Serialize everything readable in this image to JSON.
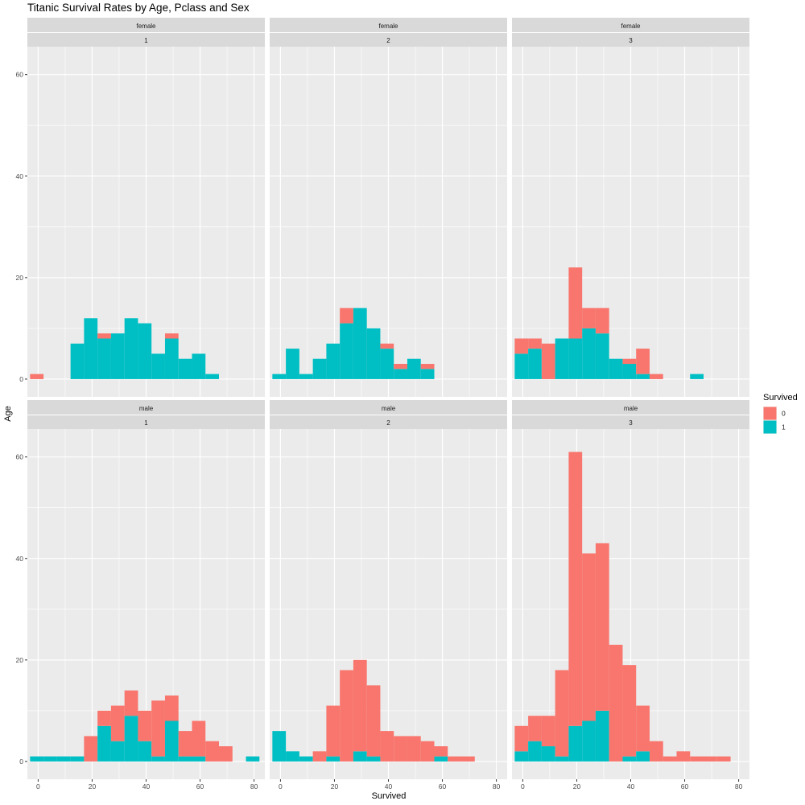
{
  "chart_data": {
    "type": "bar",
    "subtype": "stacked-histogram-facet-grid",
    "title": "Titanic Survival Rates by Age, Pclass and Sex",
    "xlabel": "Survived",
    "ylabel": "Age",
    "xlim": [
      -4,
      84
    ],
    "ylim": [
      -3.5,
      65.5
    ],
    "x_ticks": [
      0,
      20,
      40,
      60,
      80
    ],
    "y_ticks": [
      0,
      20,
      40,
      60
    ],
    "grid": true,
    "bin_width": 5,
    "legend": {
      "title": "Survived",
      "placement": "right",
      "items": [
        {
          "label": "0",
          "color": "#F8766D"
        },
        {
          "label": "1",
          "color": "#00BFC4"
        }
      ]
    },
    "colors": {
      "0": "#F8766D",
      "1": "#00BFC4",
      "panel_bg": "#EBEBEB",
      "strip_bg": "#D9D9D9",
      "grid": "#FFFFFF"
    },
    "panels": [
      {
        "sex": "female",
        "pclass": "1",
        "bin_starts": [
          -3,
          12,
          17,
          22,
          27,
          32,
          37,
          42,
          47,
          52,
          57,
          62
        ],
        "series": [
          {
            "name": "0",
            "values": [
              1,
              0,
              0,
              1,
              0,
              0,
              0,
              0,
              1,
              0,
              0,
              0
            ]
          },
          {
            "name": "1",
            "values": [
              0,
              7,
              12,
              8,
              9,
              12,
              11,
              5,
              8,
              4,
              5,
              1
            ]
          }
        ]
      },
      {
        "sex": "female",
        "pclass": "2",
        "bin_starts": [
          -3,
          2,
          7,
          12,
          17,
          22,
          27,
          32,
          37,
          42,
          47,
          52
        ],
        "series": [
          {
            "name": "0",
            "values": [
              0,
              0,
              0,
              0,
              0,
              3,
              0,
              0,
              1,
              1,
              0,
              1
            ]
          },
          {
            "name": "1",
            "values": [
              1,
              6,
              1,
              4,
              7,
              11,
              14,
              10,
              6,
              2,
              4,
              2
            ]
          }
        ]
      },
      {
        "sex": "female",
        "pclass": "3",
        "bin_starts": [
          -3,
          2,
          7,
          12,
          17,
          22,
          27,
          32,
          37,
          42,
          47,
          62
        ],
        "series": [
          {
            "name": "0",
            "values": [
              3,
              2,
              7,
              0,
              14,
              4,
              5,
              0,
              1,
              5,
              1,
              0
            ]
          },
          {
            "name": "1",
            "values": [
              5,
              6,
              0,
              8,
              8,
              10,
              9,
              4,
              3,
              1,
              0,
              1
            ]
          }
        ]
      },
      {
        "sex": "male",
        "pclass": "1",
        "bin_starts": [
          -3,
          2,
          7,
          12,
          17,
          22,
          27,
          32,
          37,
          42,
          47,
          52,
          57,
          62,
          67,
          77
        ],
        "series": [
          {
            "name": "0",
            "values": [
              0,
              0,
              0,
              0,
              5,
              3,
              7,
              5,
              6,
              11,
              5,
              5,
              7,
              4,
              3,
              0
            ]
          },
          {
            "name": "1",
            "values": [
              1,
              1,
              1,
              1,
              0,
              7,
              4,
              9,
              4,
              1,
              8,
              1,
              1,
              0,
              0,
              1
            ]
          }
        ]
      },
      {
        "sex": "male",
        "pclass": "2",
        "bin_starts": [
          -3,
          2,
          7,
          12,
          17,
          22,
          27,
          32,
          37,
          42,
          47,
          52,
          57,
          62,
          67
        ],
        "series": [
          {
            "name": "0",
            "values": [
              0,
              0,
              0,
              2,
              10,
              18,
              18,
              14,
              6,
              5,
              5,
              4,
              2,
              1,
              1
            ]
          },
          {
            "name": "1",
            "values": [
              6,
              2,
              1,
              0,
              1,
              0,
              2,
              1,
              0,
              0,
              0,
              0,
              1,
              0,
              0
            ]
          }
        ]
      },
      {
        "sex": "male",
        "pclass": "3",
        "bin_starts": [
          -3,
          2,
          7,
          12,
          17,
          22,
          27,
          32,
          37,
          42,
          47,
          52,
          57,
          62,
          67,
          72
        ],
        "series": [
          {
            "name": "0",
            "values": [
              5,
              5,
              6,
              17,
              54,
              33,
              33,
              23,
              18,
              9,
              4,
              1,
              2,
              1,
              1,
              1
            ]
          },
          {
            "name": "1",
            "values": [
              2,
              4,
              3,
              1,
              7,
              8,
              10,
              0,
              1,
              2,
              0,
              0,
              0,
              0,
              0,
              0
            ]
          }
        ]
      }
    ]
  }
}
